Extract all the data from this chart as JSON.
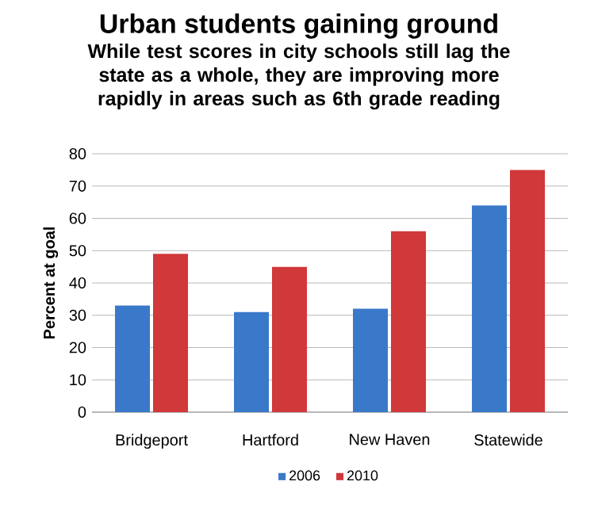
{
  "chart_data": {
    "type": "bar",
    "title": "Urban students gaining ground",
    "subtitle": "While test scores in city schools still lag the state as a whole, they are improving more rapidly in areas such as 6th grade reading",
    "ylabel": "Percent at goal",
    "categories": [
      "Bridgeport",
      "Hartford",
      "New Haven",
      "Statewide"
    ],
    "series": [
      {
        "name": "2006",
        "color": "#3a78c9",
        "values": [
          33,
          31,
          32,
          64
        ]
      },
      {
        "name": "2010",
        "color": "#d0383a",
        "values": [
          49,
          45,
          56,
          75
        ]
      }
    ],
    "ylim": [
      0,
      80
    ],
    "yticks": [
      0,
      10,
      20,
      30,
      40,
      50,
      60,
      70,
      80
    ],
    "grid": "y",
    "legend": "bottom"
  }
}
